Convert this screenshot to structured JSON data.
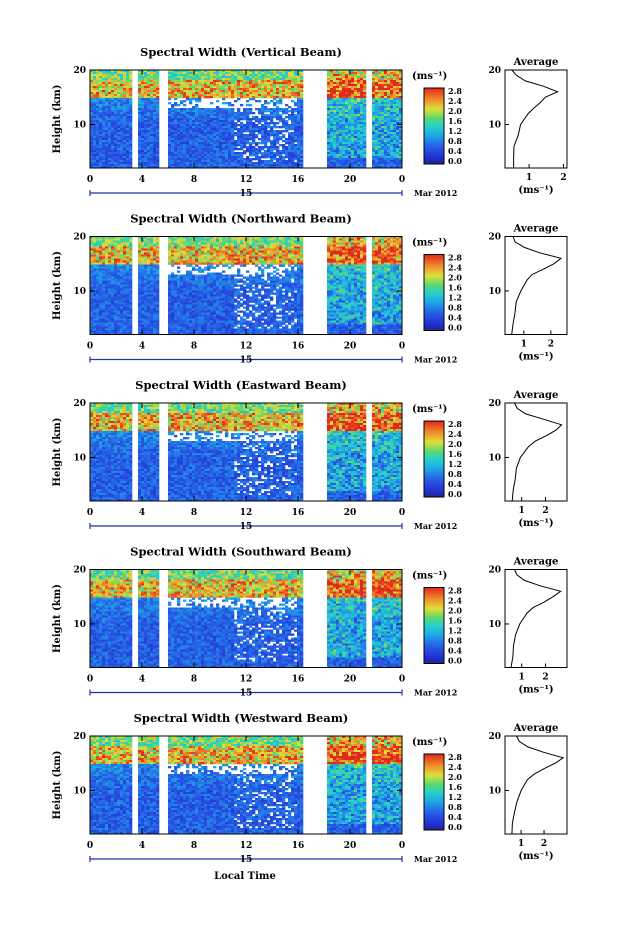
{
  "figure": {
    "xlabel": "Local Time",
    "ylabel": "Height (km)",
    "date_label": "Mar 2012",
    "day_label": "15",
    "avg_title": "Average",
    "avg_xlabel": "(ms⁻¹)",
    "colorbar_unit": "(ms⁻¹)",
    "colorbar_ticks": [
      "0.0",
      "0.4",
      "0.8",
      "1.2",
      "1.6",
      "2.0",
      "2.4",
      "2.8"
    ],
    "colors": {
      "low": "#1f2fd6",
      "mid": "#1ec8e0",
      "green": "#63d26a",
      "yellow": "#e8e23a",
      "high": "#e8341e"
    }
  },
  "chart_data": [
    {
      "type": "heatmap",
      "title": "Spectral Width (Vertical Beam)",
      "xlim": [
        0,
        24
      ],
      "xticks": [
        "0",
        "4",
        "8",
        "12",
        "16",
        "20",
        "0"
      ],
      "ylim": [
        2,
        20
      ],
      "yticks": [
        "10",
        "20"
      ],
      "clim": [
        0.0,
        2.8
      ],
      "data_gaps_hours": [
        [
          3.3,
          3.7
        ],
        [
          5.3,
          6.0
        ],
        [
          16.3,
          18.2
        ],
        [
          21.3,
          21.8
        ]
      ],
      "high_width_layer_km": [
        15,
        18
      ],
      "average_profile": {
        "xticks": [
          "1",
          "2"
        ],
        "xlim": [
          0.3,
          2.1
        ],
        "height_km": [
          2,
          4,
          6,
          8,
          10,
          12,
          13,
          14,
          15,
          16,
          17,
          18,
          19,
          20
        ],
        "width": [
          0.55,
          0.55,
          0.6,
          0.65,
          0.75,
          1.0,
          1.1,
          1.3,
          1.5,
          1.8,
          1.4,
          0.9,
          0.6,
          0.5
        ]
      }
    },
    {
      "type": "heatmap",
      "title": "Spectral Width (Northward Beam)",
      "xlim": [
        0,
        24
      ],
      "xticks": [
        "0",
        "4",
        "8",
        "12",
        "16",
        "20",
        "0"
      ],
      "ylim": [
        2,
        20
      ],
      "yticks": [
        "10",
        "20"
      ],
      "clim": [
        0.0,
        2.8
      ],
      "data_gaps_hours": [
        [
          3.3,
          3.7
        ],
        [
          5.3,
          6.0
        ],
        [
          16.3,
          18.2
        ],
        [
          21.3,
          21.8
        ]
      ],
      "high_width_layer_km": [
        15,
        18
      ],
      "average_profile": {
        "xticks": [
          "1",
          "2"
        ],
        "xlim": [
          0.3,
          2.6
        ],
        "height_km": [
          2,
          4,
          6,
          8,
          10,
          12,
          13,
          14,
          15,
          16,
          17,
          18,
          19,
          20
        ],
        "width": [
          0.55,
          0.6,
          0.65,
          0.7,
          0.85,
          1.1,
          1.3,
          1.7,
          2.1,
          2.4,
          1.6,
          1.0,
          0.7,
          0.6
        ]
      }
    },
    {
      "type": "heatmap",
      "title": "Spectral Width (Eastward Beam)",
      "xlim": [
        0,
        24
      ],
      "xticks": [
        "0",
        "4",
        "8",
        "12",
        "16",
        "20",
        "0"
      ],
      "ylim": [
        2,
        20
      ],
      "yticks": [
        "10",
        "20"
      ],
      "clim": [
        0.0,
        2.8
      ],
      "data_gaps_hours": [
        [
          3.3,
          3.7
        ],
        [
          5.3,
          6.0
        ],
        [
          16.3,
          18.2
        ],
        [
          21.3,
          21.8
        ]
      ],
      "high_width_layer_km": [
        15,
        18
      ],
      "average_profile": {
        "xticks": [
          "1",
          "2"
        ],
        "xlim": [
          0.3,
          2.9
        ],
        "height_km": [
          2,
          4,
          6,
          8,
          10,
          12,
          13,
          14,
          15,
          16,
          17,
          18,
          19,
          20
        ],
        "width": [
          0.6,
          0.65,
          0.7,
          0.8,
          0.95,
          1.3,
          1.6,
          2.0,
          2.4,
          2.7,
          1.9,
          1.2,
          0.8,
          0.7
        ]
      }
    },
    {
      "type": "heatmap",
      "title": "Spectral Width (Southward Beam)",
      "xlim": [
        0,
        24
      ],
      "xticks": [
        "0",
        "4",
        "8",
        "12",
        "16",
        "20",
        "0"
      ],
      "ylim": [
        2,
        20
      ],
      "yticks": [
        "10",
        "20"
      ],
      "clim": [
        0.0,
        2.8
      ],
      "data_gaps_hours": [
        [
          3.3,
          3.7
        ],
        [
          5.3,
          6.0
        ],
        [
          16.3,
          18.2
        ],
        [
          21.3,
          21.8
        ]
      ],
      "high_width_layer_km": [
        15,
        18
      ],
      "average_profile": {
        "xticks": [
          "1",
          "2"
        ],
        "xlim": [
          0.3,
          2.9
        ],
        "height_km": [
          2,
          4,
          6,
          8,
          10,
          12,
          13,
          14,
          15,
          16,
          17,
          18,
          19,
          20
        ],
        "width": [
          0.55,
          0.6,
          0.65,
          0.75,
          0.9,
          1.2,
          1.5,
          1.9,
          2.3,
          2.6,
          1.8,
          1.1,
          0.8,
          0.7
        ]
      }
    },
    {
      "type": "heatmap",
      "title": "Spectral Width (Westward Beam)",
      "xlim": [
        0,
        24
      ],
      "xticks": [
        "0",
        "4",
        "8",
        "12",
        "16",
        "20",
        "0"
      ],
      "ylim": [
        2,
        20
      ],
      "yticks": [
        "10",
        "20"
      ],
      "clim": [
        0.0,
        2.8
      ],
      "data_gaps_hours": [
        [
          3.3,
          3.7
        ],
        [
          5.3,
          6.0
        ],
        [
          16.3,
          18.2
        ],
        [
          21.3,
          21.8
        ]
      ],
      "high_width_layer_km": [
        15,
        18
      ],
      "average_profile": {
        "xticks": [
          "1",
          "2"
        ],
        "xlim": [
          0.3,
          3.0
        ],
        "height_km": [
          2,
          4,
          6,
          8,
          10,
          12,
          13,
          14,
          15,
          16,
          17,
          18,
          19,
          20
        ],
        "width": [
          0.6,
          0.65,
          0.7,
          0.8,
          1.0,
          1.3,
          1.6,
          2.0,
          2.5,
          2.8,
          2.0,
          1.3,
          0.9,
          0.8
        ]
      }
    }
  ]
}
